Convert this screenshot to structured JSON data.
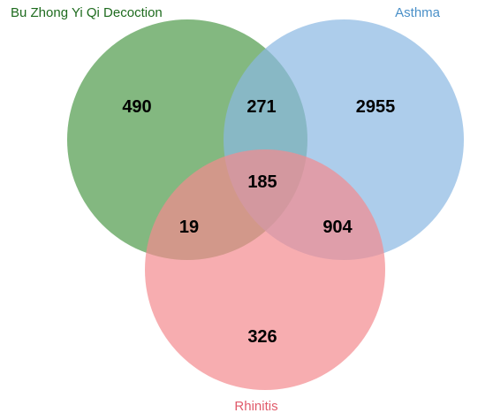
{
  "sets": [
    {
      "key": "a",
      "label": "Bu Zhong Yi Qi Decoction",
      "fill": "#4f9a4a",
      "label_color": "#1e6b1e"
    },
    {
      "key": "b",
      "label": "Asthma",
      "fill": "#8ab8e3",
      "label_color": "#4a90c8"
    },
    {
      "key": "c",
      "label": "Rhinitis",
      "fill": "#f48a8e",
      "label_color": "#e05a6a"
    }
  ],
  "regions": {
    "a_only": "490",
    "a_b": "271",
    "b_only": "2955",
    "a_b_c": "185",
    "a_c": "19",
    "b_c": "904",
    "c_only": "326"
  }
}
